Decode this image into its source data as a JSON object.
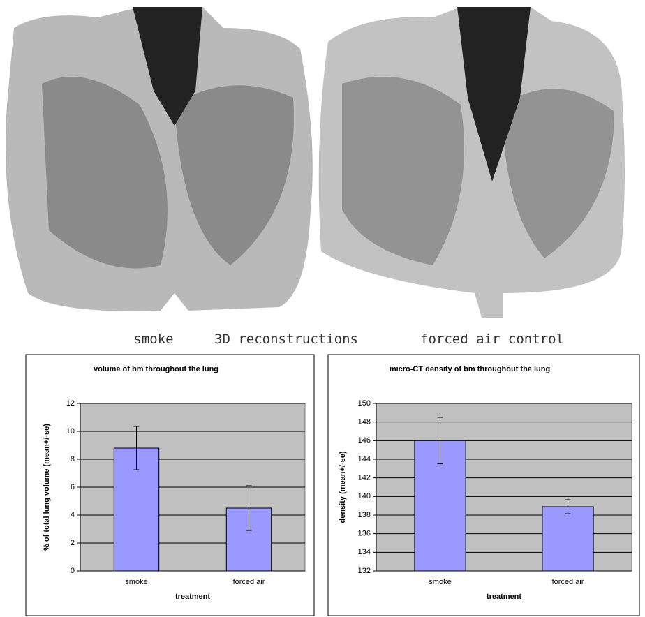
{
  "figure_labels": {
    "left": "smoke",
    "center": "3D reconstructions",
    "right": "forced air control"
  },
  "chart_data": [
    {
      "type": "bar",
      "title": "volume of bm throughout the lung",
      "y_label": "% of total lung volume (mean+/-se)",
      "x_label": "treatment",
      "categories": [
        "smoke",
        "forced air"
      ],
      "values": [
        8.8,
        4.5
      ],
      "errors": [
        1.55,
        1.6
      ],
      "color": "#9999ff",
      "ylim": [
        0,
        12
      ],
      "yticks": [
        0,
        2,
        4,
        6,
        8,
        10,
        12
      ],
      "grid": true
    },
    {
      "type": "bar",
      "title": "micro-CT density of bm  throughout the lung",
      "y_label": "density (mean+/-se)",
      "x_label": "treatment",
      "categories": [
        "smoke",
        "forced air"
      ],
      "values": [
        146.0,
        138.9
      ],
      "errors": [
        2.5,
        0.75
      ],
      "color": "#9999ff",
      "ylim": [
        132,
        150
      ],
      "yticks": [
        132,
        134,
        136,
        138,
        140,
        142,
        144,
        146,
        148,
        150
      ],
      "grid": true
    }
  ]
}
